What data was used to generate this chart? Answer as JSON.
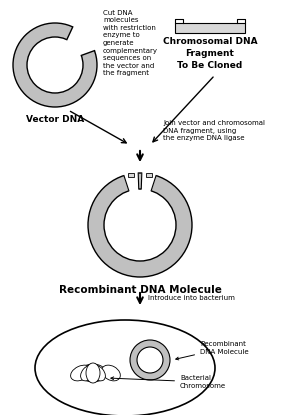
{
  "bg_color": "#ffffff",
  "line_color": "#000000",
  "gray_fill": "#c0c0c0",
  "light_gray": "#d8d8d8",
  "text_vector_dna": "Vector DNA",
  "text_cut_dna": "Cut DNA\nmolecules\nwith restriction\nenzyme to\ngenerate\ncomplementary\nsequences on\nthe vector and\nthe fragment",
  "text_chromosomal": "Chromosomal DNA\nFragment\nTo Be Cloned",
  "text_join": "Join vector and chromosomal\nDNA fragment, using\nthe enzyme DNA ligase",
  "text_recombinant": "Recombinant DNA Molecule",
  "text_introduce": "Introduce into bacterium",
  "text_recombinant2": "Recombinant\nDNA Molecule",
  "text_bacterial": "Bacterial\nChromosome",
  "font_small": 5.0,
  "font_medium": 6.5,
  "font_label": 7.5
}
